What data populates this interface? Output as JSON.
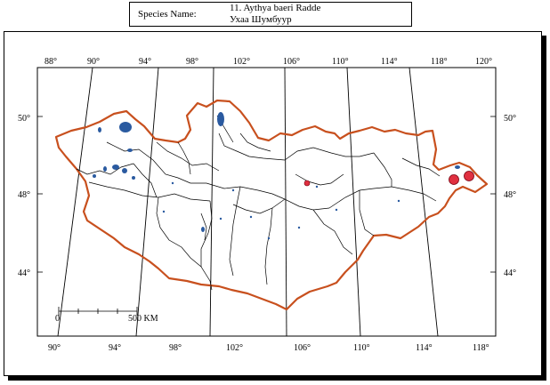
{
  "header": {
    "species_label": "Species Name:",
    "species_latin": "11. Aythya baeri Radde",
    "species_local": "Ухаа Шумбуур"
  },
  "map": {
    "top_longitudes": [
      "88°",
      "90°",
      "94°",
      "98°",
      "102°",
      "106°",
      "110°",
      "114°",
      "118°",
      "120°"
    ],
    "bottom_longitudes": [
      "90°",
      "94°",
      "98°",
      "102°",
      "106°",
      "110°",
      "114°",
      "118°"
    ],
    "left_latitudes": [
      "50°",
      "48°",
      "44°"
    ],
    "right_latitudes": [
      "50°",
      "48°",
      "44°"
    ],
    "scale_bar": {
      "start": "0",
      "end": "500 KM"
    },
    "colors": {
      "border": "#c8501e",
      "lakes": "#2a5aa0",
      "records": "#e03040",
      "rivers": "#000000"
    },
    "records": [
      {
        "name": "record-central",
        "lon": 106.7,
        "lat": 48.3
      },
      {
        "name": "record-east-1",
        "lon": 115.4,
        "lat": 48.4
      },
      {
        "name": "record-east-2",
        "lon": 116.2,
        "lat": 48.5
      }
    ]
  }
}
